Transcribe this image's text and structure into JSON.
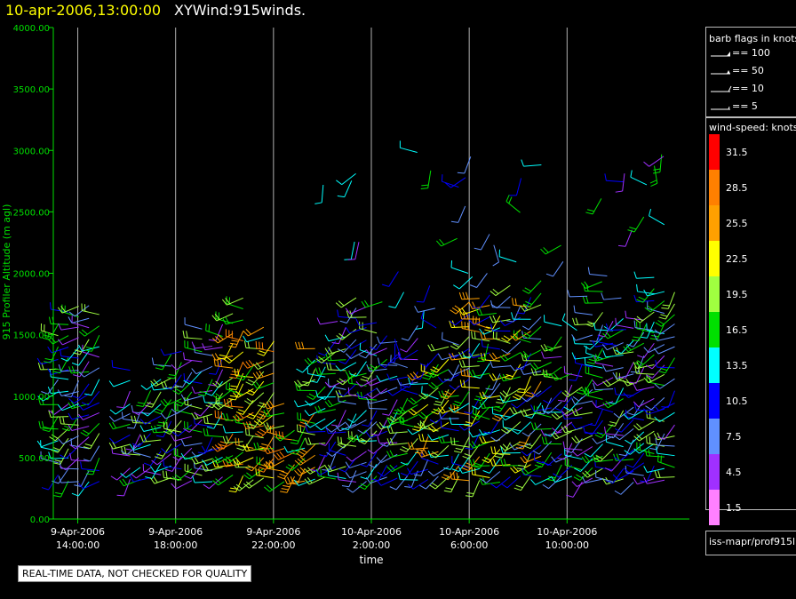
{
  "header": {
    "datetime": "10-apr-2006,13:00:00",
    "title": "XYWind:915winds."
  },
  "notice": "REAL-TIME DATA, NOT CHECKED FOR QUALITY",
  "legend": {
    "barb_title": "barb flags in knots",
    "barb_items": [
      {
        "label": "== 100"
      },
      {
        "label": "== 50"
      },
      {
        "label": "== 10"
      },
      {
        "label": "== 5"
      }
    ],
    "speed_title": "wind-speed: knots",
    "speed_items": [
      {
        "label": "31.5",
        "color": "#ff0000"
      },
      {
        "label": "28.5",
        "color": "#ff8000"
      },
      {
        "label": "25.5",
        "color": "#ffa000"
      },
      {
        "label": "22.5",
        "color": "#ffff00"
      },
      {
        "label": "19.5",
        "color": "#a0ff40"
      },
      {
        "label": "16.5",
        "color": "#00e000"
      },
      {
        "label": "13.5",
        "color": "#00ffff"
      },
      {
        "label": "10.5",
        "color": "#0000ff"
      },
      {
        "label": "7.5",
        "color": "#6090ff"
      },
      {
        "label": "4.5",
        "color": "#a030ff"
      },
      {
        "label": "1.5",
        "color": "#ff80ff"
      }
    ],
    "source": "iss-mapr/prof915l"
  },
  "chart_data": {
    "type": "scatter",
    "title": "XYWind:915winds.",
    "xlabel": "time",
    "ylabel": "915 Profiler Altitude (m agl)",
    "ylim": [
      0,
      4000
    ],
    "yticks": [
      "0.00",
      "500.00",
      "1000.00",
      "1500.00",
      "2000.00",
      "2500.00",
      "3000.00",
      "3500.00",
      "4000.00"
    ],
    "xticks": [
      {
        "date": "9-Apr-2006",
        "time": "14:00:00",
        "hour": 14
      },
      {
        "date": "9-Apr-2006",
        "time": "18:00:00",
        "hour": 18
      },
      {
        "date": "9-Apr-2006",
        "time": "22:00:00",
        "hour": 22
      },
      {
        "date": "10-Apr-2006",
        "time": "2:00:00",
        "hour": 26
      },
      {
        "date": "10-Apr-2006",
        "time": "6:00:00",
        "hour": 30
      },
      {
        "date": "10-Apr-2006",
        "time": "10:00:00",
        "hour": 34
      }
    ],
    "xlim_hours": [
      13,
      39
    ],
    "grid": "vertical",
    "colors": {
      "axis": "#00e000",
      "grid": "#b0b0b0",
      "tick_label": "#ffffff"
    }
  }
}
